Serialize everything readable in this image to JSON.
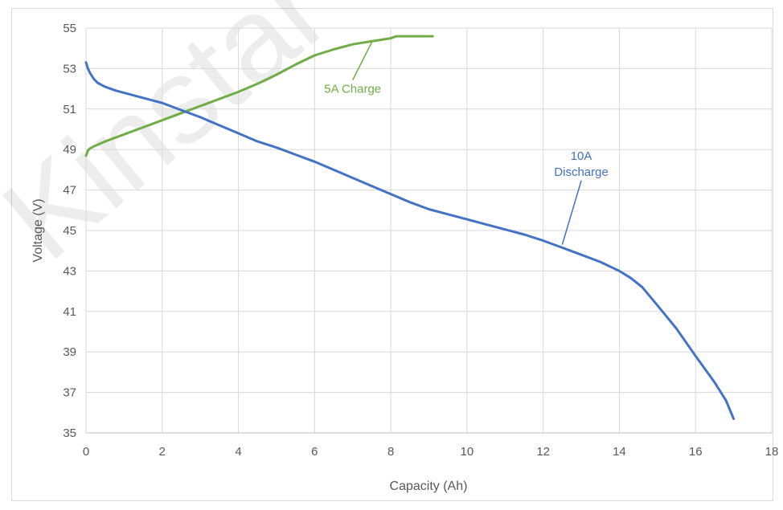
{
  "watermark": {
    "text": "Kinstar"
  },
  "chart_data": {
    "type": "line",
    "xlabel": "Capacity (Ah)",
    "ylabel": "Voltage (V)",
    "xlim": [
      0,
      18
    ],
    "ylim": [
      35,
      55
    ],
    "xticks": [
      0,
      2,
      4,
      6,
      8,
      10,
      12,
      14,
      16,
      18
    ],
    "yticks": [
      35,
      37,
      39,
      41,
      43,
      45,
      47,
      49,
      51,
      53,
      55
    ],
    "grid": true,
    "legend": "none",
    "series": [
      {
        "name": "5A Charge",
        "color": "#70ad47",
        "x": [
          0,
          0.05,
          0.1,
          0.2,
          0.5,
          1,
          1.5,
          2,
          2.5,
          3,
          3.5,
          4,
          4.5,
          5,
          5.5,
          6,
          6.5,
          7,
          7.5,
          8,
          8.15,
          8.5,
          9,
          9.1
        ],
        "y": [
          48.7,
          48.95,
          49.05,
          49.15,
          49.4,
          49.75,
          50.1,
          50.45,
          50.8,
          51.15,
          51.5,
          51.85,
          52.25,
          52.7,
          53.2,
          53.65,
          53.95,
          54.2,
          54.35,
          54.5,
          54.6,
          54.6,
          54.6,
          54.6
        ]
      },
      {
        "name": "10A Discharge",
        "color": "#4472c4",
        "x": [
          0,
          0.05,
          0.1,
          0.2,
          0.3,
          0.5,
          0.8,
          1,
          1.5,
          2,
          2.5,
          3,
          3.5,
          4,
          4.5,
          5,
          5.5,
          6,
          6.5,
          7,
          7.5,
          8,
          8.5,
          9,
          9.5,
          10,
          10.5,
          11,
          11.5,
          12,
          12.5,
          13,
          13.5,
          14,
          14.3,
          14.6,
          15,
          15.5,
          16,
          16.5,
          16.8,
          17
        ],
        "y": [
          53.3,
          53.0,
          52.8,
          52.5,
          52.3,
          52.1,
          51.9,
          51.8,
          51.55,
          51.3,
          50.95,
          50.6,
          50.2,
          49.8,
          49.4,
          49.1,
          48.75,
          48.4,
          48.0,
          47.6,
          47.2,
          46.8,
          46.4,
          46.05,
          45.8,
          45.55,
          45.3,
          45.05,
          44.8,
          44.5,
          44.15,
          43.8,
          43.45,
          43.0,
          42.65,
          42.2,
          41.3,
          40.15,
          38.8,
          37.5,
          36.6,
          35.7
        ]
      }
    ],
    "annotations": [
      {
        "series": 0,
        "lines": [
          "5A Charge"
        ],
        "color": "#70ad47",
        "text_at": [
          7.0,
          51.8
        ],
        "points_to": [
          7.5,
          54.3
        ]
      },
      {
        "series": 1,
        "lines": [
          "10A",
          "Discharge"
        ],
        "color": "#4472c4",
        "text_at": [
          13.0,
          47.7
        ],
        "points_to": [
          12.5,
          44.3
        ]
      }
    ]
  }
}
